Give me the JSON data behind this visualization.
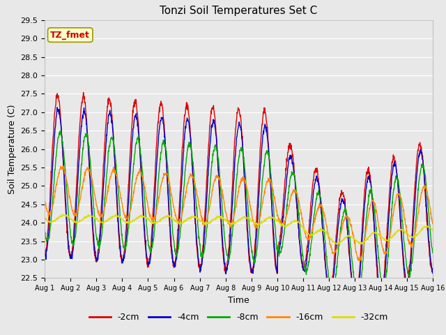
{
  "title": "Tonzi Soil Temperatures Set C",
  "xlabel": "Time",
  "ylabel": "Soil Temperature (C)",
  "ylim": [
    22.5,
    29.5
  ],
  "xlim": [
    0,
    15
  ],
  "xtick_labels": [
    "Aug 1",
    "Aug 2",
    "Aug 3",
    "Aug 4",
    "Aug 5",
    "Aug 6",
    "Aug 7",
    "Aug 8",
    "Aug 9",
    "Aug 10",
    "Aug 11",
    "Aug 12",
    "Aug 13",
    "Aug 14",
    "Aug 15",
    "Aug 16"
  ],
  "ytick_values": [
    22.5,
    23.0,
    23.5,
    24.0,
    24.5,
    25.0,
    25.5,
    26.0,
    26.5,
    27.0,
    27.5,
    28.0,
    28.5,
    29.0,
    29.5
  ],
  "series": {
    "-2cm": {
      "color": "#dd0000",
      "linewidth": 1.0
    },
    "-4cm": {
      "color": "#0000cc",
      "linewidth": 1.0
    },
    "-8cm": {
      "color": "#00aa00",
      "linewidth": 1.0
    },
    "-16cm": {
      "color": "#ff8800",
      "linewidth": 1.0
    },
    "-32cm": {
      "color": "#dddd00",
      "linewidth": 1.0
    }
  },
  "annotation_label": "TZ_fmet",
  "annotation_color": "#cc0000",
  "annotation_bg": "#ffffcc",
  "fig_bg": "#e8e8e8",
  "plot_bg": "#e8e8e8",
  "grid_color": "#ffffff"
}
